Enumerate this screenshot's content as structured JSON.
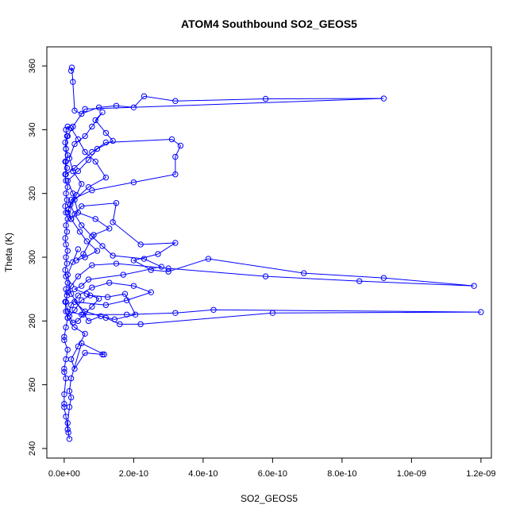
{
  "chart_data": {
    "type": "line",
    "title": "ATOM4 Southbound SO2_GEOS5",
    "xlabel": "SO2_GEOS5",
    "ylabel": "Theta (K)",
    "xlim": [
      -5e-11,
      1.23e-09
    ],
    "ylim": [
      237,
      366
    ],
    "xticks": [
      0,
      2e-10,
      4e-10,
      6e-10,
      8e-10,
      1e-09,
      1.2e-09
    ],
    "xtick_labels": [
      "0.0e+00",
      "2.0e-10",
      "4.0e-10",
      "6.0e-10",
      "8.0e-10",
      "1.0e-09",
      "1.2e-09"
    ],
    "yticks": [
      240,
      260,
      280,
      300,
      320,
      340,
      360
    ],
    "ytick_labels": [
      "240",
      "260",
      "280",
      "300",
      "320",
      "340",
      "360"
    ],
    "grid": false,
    "series": [
      {
        "color": "#0000ff",
        "marker": "open-circle",
        "line": true,
        "points": [
          [
            2e-11,
            358.5
          ],
          [
            2.2e-11,
            359.5
          ],
          [
            2.5e-11,
            355.0
          ],
          [
            3e-11,
            346.0
          ],
          [
            5e-11,
            345.0
          ],
          [
            1e-10,
            347.0
          ],
          [
            1.5e-10,
            347.5
          ],
          [
            2e-10,
            347.0
          ],
          [
            2.3e-10,
            350.5
          ],
          [
            3.2e-10,
            349.0
          ],
          [
            5.8e-10,
            349.7
          ],
          [
            9.2e-10,
            349.8
          ],
          [
            6e-11,
            346.5
          ],
          [
            2.5e-11,
            341.0
          ],
          [
            1e-11,
            338.0
          ],
          [
            5e-12,
            334.0
          ],
          [
            3e-12,
            330.0
          ],
          [
            5e-12,
            326.0
          ],
          [
            3e-11,
            328.0
          ],
          [
            8e-11,
            333.0
          ],
          [
            1.2e-10,
            336.0
          ],
          [
            3.1e-10,
            337.0
          ],
          [
            3.35e-10,
            335.0
          ],
          [
            3.2e-10,
            331.5
          ],
          [
            3.2e-10,
            326.0
          ],
          [
            2e-10,
            323.5
          ],
          [
            8e-11,
            321.0
          ],
          [
            2e-11,
            318.0
          ],
          [
            1e-11,
            314.0
          ],
          [
            2e-11,
            312.0
          ],
          [
            5e-11,
            316.0
          ],
          [
            1.5e-10,
            317.0
          ],
          [
            1.4e-10,
            311.0
          ],
          [
            2.2e-10,
            304.0
          ],
          [
            3.2e-10,
            304.5
          ],
          [
            2.7e-10,
            301.0
          ],
          [
            2e-10,
            299.0
          ],
          [
            2.5e-10,
            296.0
          ],
          [
            3e-10,
            295.5
          ],
          [
            4.15e-10,
            299.5
          ],
          [
            6.9e-10,
            295.0
          ],
          [
            9.2e-10,
            293.5
          ],
          [
            1.18e-09,
            291.0
          ],
          [
            8.5e-10,
            292.5
          ],
          [
            5.8e-10,
            294.0
          ],
          [
            3e-10,
            296.5
          ],
          [
            1.5e-10,
            298.0
          ],
          [
            8e-11,
            297.5
          ],
          [
            4e-11,
            294.0
          ],
          [
            2e-11,
            291.0
          ],
          [
            1e-11,
            289.0
          ],
          [
            5e-12,
            286.0
          ],
          [
            1e-11,
            283.0
          ],
          [
            5e-11,
            282.0
          ],
          [
            1.8e-10,
            282.0
          ],
          [
            3.2e-10,
            282.5
          ],
          [
            4.3e-10,
            283.5
          ],
          [
            1.2e-09,
            282.8
          ],
          [
            6e-10,
            282.5
          ],
          [
            2.2e-10,
            279.0
          ],
          [
            1.6e-10,
            279.0
          ],
          [
            1.2e-10,
            281.0
          ],
          [
            6e-11,
            283.0
          ],
          [
            3e-11,
            286.0
          ],
          [
            1.2e-10,
            285.0
          ],
          [
            1.8e-10,
            286.5
          ],
          [
            2.5e-10,
            289.0
          ],
          [
            2e-10,
            291.0
          ],
          [
            1.3e-10,
            292.0
          ],
          [
            8e-11,
            290.5
          ],
          [
            4e-11,
            288.0
          ],
          [
            2e-11,
            285.0
          ],
          [
            1e-11,
            281.0
          ],
          [
            3e-11,
            278.0
          ],
          [
            6e-11,
            276.0
          ],
          [
            4e-11,
            272.0
          ],
          [
            2e-11,
            268.0
          ],
          [
            3e-11,
            265.0
          ],
          [
            6e-11,
            270.0
          ],
          [
            1.1e-10,
            269.5
          ],
          [
            1.15e-10,
            269.5
          ],
          [
            5e-11,
            273.0
          ],
          [
            2e-11,
            262.0
          ],
          [
            1.5e-11,
            258.0
          ],
          [
            2e-11,
            256.0
          ],
          [
            1.5e-11,
            253.0
          ],
          [
            1e-11,
            248.0
          ],
          [
            1.2e-11,
            245.0
          ],
          [
            1.5e-11,
            243.0
          ],
          [
            1e-11,
            246.0
          ],
          [
            5e-12,
            250.0
          ],
          [
            0.0,
            253.0
          ],
          [
            0.0,
            254.0
          ],
          [
            0.0,
            257.0
          ],
          [
            5e-12,
            262.0
          ],
          [
            0.0,
            264.0
          ],
          [
            0.0,
            265.0
          ],
          [
            5e-12,
            268.0
          ],
          [
            1e-11,
            271.0
          ],
          [
            0.0,
            274.0
          ],
          [
            0.0,
            275.0
          ],
          [
            5e-12,
            278.0
          ],
          [
            1e-11,
            281.0
          ],
          [
            5e-12,
            283.0
          ],
          [
            3e-12,
            286.0
          ],
          [
            8e-12,
            288.0
          ],
          [
            5e-12,
            290.0
          ],
          [
            1e-11,
            292.0
          ],
          [
            5e-12,
            294.0
          ],
          [
            3e-12,
            296.0
          ],
          [
            8e-12,
            298.0
          ],
          [
            5e-12,
            300.0
          ],
          [
            1e-11,
            302.0
          ],
          [
            5e-12,
            304.0
          ],
          [
            3e-12,
            306.0
          ],
          [
            8e-12,
            308.0
          ],
          [
            5e-12,
            310.0
          ],
          [
            1e-11,
            312.0
          ],
          [
            5e-12,
            314.0
          ],
          [
            3e-12,
            316.0
          ],
          [
            8e-12,
            318.0
          ],
          [
            5e-12,
            320.0
          ],
          [
            1e-11,
            322.0
          ],
          [
            5e-12,
            324.0
          ],
          [
            3e-12,
            326.0
          ],
          [
            8e-12,
            328.0
          ],
          [
            5e-12,
            330.0
          ],
          [
            1e-11,
            332.0
          ],
          [
            5e-12,
            334.0
          ],
          [
            3e-12,
            336.0
          ],
          [
            8e-12,
            338.0
          ],
          [
            5e-12,
            340.0
          ],
          [
            1e-11,
            341.0
          ],
          [
            2e-11,
            340.5
          ],
          [
            4e-11,
            337.0
          ],
          [
            6e-11,
            333.0
          ],
          [
            9e-11,
            330.0
          ],
          [
            1.2e-10,
            325.0
          ],
          [
            7e-11,
            322.0
          ],
          [
            3e-11,
            318.0
          ],
          [
            1.2e-11,
            315.0
          ],
          [
            2e-11,
            312.0
          ],
          [
            4.5e-11,
            308.0
          ],
          [
            6.5e-11,
            305.0
          ],
          [
            9.5e-11,
            302.0
          ],
          [
            6e-11,
            300.0
          ],
          [
            3.5e-11,
            299.0
          ],
          [
            5.5e-11,
            301.0
          ],
          [
            8.5e-11,
            307.0
          ],
          [
            1.3e-10,
            309.0
          ],
          [
            9e-11,
            312.0
          ],
          [
            4e-11,
            314.0
          ],
          [
            2.5e-11,
            320.0
          ],
          [
            1e-11,
            324.0
          ],
          [
            4e-11,
            327.0
          ],
          [
            7e-11,
            330.5
          ],
          [
            9.5e-11,
            334.0
          ],
          [
            1.4e-10,
            336.5
          ],
          [
            1.2e-10,
            339.0
          ],
          [
            9e-11,
            343.0
          ],
          [
            1.1e-10,
            345.5
          ],
          [
            8e-11,
            341.0
          ],
          [
            6e-11,
            338.0
          ],
          [
            3e-11,
            335.5
          ],
          [
            1.5e-11,
            331.0
          ],
          [
            2.5e-11,
            327.0
          ],
          [
            5e-11,
            323.0
          ],
          [
            3.5e-11,
            319.5
          ],
          [
            1.8e-11,
            316.5
          ],
          [
            3e-11,
            313.5
          ],
          [
            5e-11,
            310.0
          ],
          [
            8e-11,
            306.5
          ],
          [
            1.1e-10,
            303.5
          ],
          [
            1.4e-10,
            300.5
          ],
          [
            2.3e-10,
            299.5
          ],
          [
            2.8e-10,
            297.0
          ],
          [
            1.7e-10,
            294.5
          ],
          [
            7e-11,
            293.0
          ],
          [
            5e-11,
            291.0
          ],
          [
            3e-11,
            290.0
          ],
          [
            6.5e-11,
            288.5
          ],
          [
            1e-10,
            287.0
          ],
          [
            8e-11,
            284.5
          ],
          [
            5.5e-11,
            282.0
          ],
          [
            4e-11,
            280.0
          ],
          [
            2.5e-11,
            279.5
          ],
          [
            1.5e-11,
            281.5
          ],
          [
            3e-11,
            283.5
          ],
          [
            5e-11,
            286.5
          ],
          [
            7.5e-11,
            288.0
          ],
          [
            1.25e-10,
            287.5
          ],
          [
            1.75e-10,
            288.5
          ],
          [
            2.05e-10,
            282.0
          ],
          [
            1.45e-10,
            280.5
          ],
          [
            1.05e-10,
            281.5
          ],
          [
            7e-11,
            280.0
          ],
          [
            2e-11,
            288.5
          ],
          [
            1e-11,
            294.5
          ],
          [
            2.5e-11,
            298.5
          ],
          [
            4e-11,
            302.5
          ]
        ]
      }
    ]
  }
}
